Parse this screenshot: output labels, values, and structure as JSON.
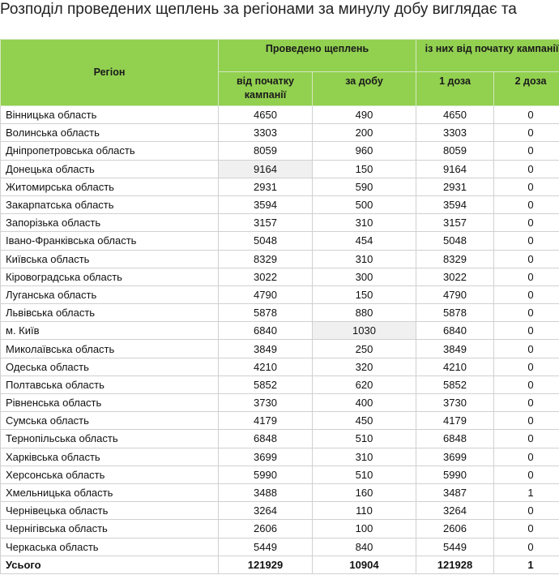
{
  "title": "Розподіл проведених щеплень за регіонами за минулу добу виглядає та",
  "header": {
    "region": "Регіон",
    "group1": "Проведено щеплень",
    "group2": "із них від початку кампанії",
    "col_since_start": "від початку кампанії",
    "col_per_day": "за добу",
    "col_dose1": "1 доза",
    "col_dose2": "2 доза"
  },
  "rows": [
    {
      "region": "Вінницька область",
      "since_start": "4650",
      "per_day": "490",
      "dose1": "4650",
      "dose2": "0"
    },
    {
      "region": "Волинська область",
      "since_start": "3303",
      "per_day": "200",
      "dose1": "3303",
      "dose2": "0"
    },
    {
      "region": "Дніпропетровська область",
      "since_start": "8059",
      "per_day": "960",
      "dose1": "8059",
      "dose2": "0"
    },
    {
      "region": "Донецька область",
      "since_start": "9164",
      "per_day": "150",
      "dose1": "9164",
      "dose2": "0"
    },
    {
      "region": "Житомирська область",
      "since_start": "2931",
      "per_day": "590",
      "dose1": "2931",
      "dose2": "0"
    },
    {
      "region": "Закарпатська область",
      "since_start": "3594",
      "per_day": "500",
      "dose1": "3594",
      "dose2": "0"
    },
    {
      "region": "Запорізька область",
      "since_start": "3157",
      "per_day": "310",
      "dose1": "3157",
      "dose2": "0"
    },
    {
      "region": "Івано-Франківська область",
      "since_start": "5048",
      "per_day": "454",
      "dose1": "5048",
      "dose2": "0"
    },
    {
      "region": "Київська область",
      "since_start": "8329",
      "per_day": "310",
      "dose1": "8329",
      "dose2": "0"
    },
    {
      "region": "Кіровоградська область",
      "since_start": "3022",
      "per_day": "300",
      "dose1": "3022",
      "dose2": "0"
    },
    {
      "region": "Луганська область",
      "since_start": "4790",
      "per_day": "150",
      "dose1": "4790",
      "dose2": "0"
    },
    {
      "region": "Львівська область",
      "since_start": "5878",
      "per_day": "880",
      "dose1": "5878",
      "dose2": "0"
    },
    {
      "region": "м. Київ",
      "since_start": "6840",
      "per_day": "1030",
      "dose1": "6840",
      "dose2": "0"
    },
    {
      "region": "Миколаївська область",
      "since_start": "3849",
      "per_day": "250",
      "dose1": "3849",
      "dose2": "0"
    },
    {
      "region": "Одеська область",
      "since_start": "4210",
      "per_day": "320",
      "dose1": "4210",
      "dose2": "0"
    },
    {
      "region": "Полтавська область",
      "since_start": "5852",
      "per_day": "620",
      "dose1": "5852",
      "dose2": "0"
    },
    {
      "region": "Рівненська область",
      "since_start": "3730",
      "per_day": "400",
      "dose1": "3730",
      "dose2": "0"
    },
    {
      "region": "Сумська область",
      "since_start": "4179",
      "per_day": "450",
      "dose1": "4179",
      "dose2": "0"
    },
    {
      "region": "Тернопільська область",
      "since_start": "6848",
      "per_day": "510",
      "dose1": "6848",
      "dose2": "0"
    },
    {
      "region": "Харківська область",
      "since_start": "3699",
      "per_day": "310",
      "dose1": "3699",
      "dose2": "0"
    },
    {
      "region": "Херсонська область",
      "since_start": "5990",
      "per_day": "510",
      "dose1": "5990",
      "dose2": "0"
    },
    {
      "region": "Хмельницька область",
      "since_start": "3488",
      "per_day": "160",
      "dose1": "3487",
      "dose2": "1"
    },
    {
      "region": "Чернівецька область",
      "since_start": "3264",
      "per_day": "110",
      "dose1": "3264",
      "dose2": "0"
    },
    {
      "region": "Чернігівська область",
      "since_start": "2606",
      "per_day": "100",
      "dose1": "2606",
      "dose2": "0"
    },
    {
      "region": "Черкаська область",
      "since_start": "5449",
      "per_day": "840",
      "dose1": "5449",
      "dose2": "0"
    }
  ],
  "total": {
    "region": "Усього",
    "since_start": "121929",
    "per_day": "10904",
    "dose1": "121928",
    "dose2": "1"
  },
  "colors": {
    "header_bg": "#92d050",
    "highlight_cell": "#f0f0f0"
  }
}
